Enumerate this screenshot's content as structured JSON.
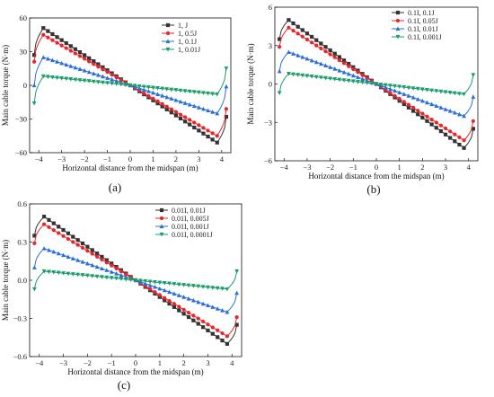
{
  "figure": {
    "panels": [
      {
        "id": "a",
        "label": "(a)",
        "xlabel": "Horizontal distance from the midspan (m)",
        "ylabel": "Main cable torque (N·m)",
        "ylim": [
          -60,
          60
        ],
        "yticks": [
          -60,
          -30,
          0,
          30,
          60
        ],
        "xlim": [
          -4.4,
          4.4
        ],
        "xticks": [
          -4,
          -3,
          -2,
          -1,
          0,
          1,
          2,
          3,
          4
        ],
        "legend": [
          "1, J",
          "1, 0.5J",
          "1, 0.1J",
          "1, 0.01J"
        ]
      },
      {
        "id": "b",
        "label": "(b)",
        "xlabel": "Horizontal distance from the midspan (m)",
        "ylabel": "Main cable torque (N·m)",
        "ylim": [
          -6,
          6
        ],
        "yticks": [
          -6,
          -3,
          0,
          3,
          6
        ],
        "xlim": [
          -4.4,
          4.4
        ],
        "xticks": [
          -4,
          -3,
          -2,
          -1,
          0,
          1,
          2,
          3,
          4
        ],
        "legend": [
          "0.1I, 0.1J",
          "0.1I, 0.05J",
          "0.1I, 0.01J",
          "0.1I, 0.001J"
        ]
      },
      {
        "id": "c",
        "label": "(c)",
        "xlabel": "Horizontal distance from the midspan (m)",
        "ylabel": "Main cable torque (N·m)",
        "ylim": [
          -0.6,
          0.6
        ],
        "yticks": [
          -0.6,
          -0.3,
          0.0,
          0.3,
          0.6
        ],
        "xlim": [
          -4.4,
          4.4
        ],
        "xticks": [
          -4,
          -3,
          -2,
          -1,
          0,
          1,
          2,
          3,
          4
        ],
        "legend": [
          "0.01I, 0.01J",
          "0.01I, 0.005J",
          "0.01I, 0.001J",
          "0.01I, 0.0001J"
        ]
      }
    ],
    "series_styles": [
      {
        "color": "#333333",
        "marker": "square"
      },
      {
        "color": "#e8252a",
        "marker": "circle"
      },
      {
        "color": "#2a6fd6",
        "marker": "triangle-up"
      },
      {
        "color": "#1a9e6a",
        "marker": "triangle-down"
      }
    ]
  },
  "chart_data": [
    {
      "type": "line",
      "x_range": [
        -4.2,
        4.2
      ],
      "ylim": [
        -60,
        60
      ],
      "series": [
        {
          "name": "1, J",
          "start": 27,
          "peak_x": -3.8,
          "peak": 51,
          "end": -28
        },
        {
          "name": "1, 0.5J",
          "start": 21,
          "peak_x": -3.8,
          "peak": 45,
          "end": -21
        },
        {
          "name": "1, 0.1J",
          "start": 0,
          "peak_x": -3.8,
          "peak": 25,
          "end": -1
        },
        {
          "name": "1, 0.01J",
          "start": -16,
          "peak_x": -3.8,
          "peak": 8,
          "end": 15
        }
      ]
    },
    {
      "type": "line",
      "x_range": [
        -4.2,
        4.2
      ],
      "ylim": [
        -6,
        6
      ],
      "series": [
        {
          "name": "0.1I, 0.1J",
          "start": 3.5,
          "peak_x": -3.8,
          "peak": 5.0,
          "end": -3.5
        },
        {
          "name": "0.1I, 0.05J",
          "start": 2.9,
          "peak_x": -3.8,
          "peak": 4.4,
          "end": -2.9
        },
        {
          "name": "0.1I, 0.01J",
          "start": 1.0,
          "peak_x": -3.8,
          "peak": 2.5,
          "end": -1.0
        },
        {
          "name": "0.1I, 0.001J",
          "start": -0.7,
          "peak_x": -3.8,
          "peak": 0.8,
          "end": 0.7
        }
      ]
    },
    {
      "type": "line",
      "x_range": [
        -4.2,
        4.2
      ],
      "ylim": [
        -0.6,
        0.6
      ],
      "series": [
        {
          "name": "0.01I, 0.01J",
          "start": 0.35,
          "peak_x": -3.8,
          "peak": 0.5,
          "end": -0.35
        },
        {
          "name": "0.01I, 0.005J",
          "start": 0.29,
          "peak_x": -3.8,
          "peak": 0.44,
          "end": -0.29
        },
        {
          "name": "0.01I, 0.001J",
          "start": 0.1,
          "peak_x": -3.8,
          "peak": 0.25,
          "end": -0.1
        },
        {
          "name": "0.01I, 0.0001J",
          "start": -0.07,
          "peak_x": -3.8,
          "peak": 0.07,
          "end": 0.07
        }
      ]
    }
  ]
}
